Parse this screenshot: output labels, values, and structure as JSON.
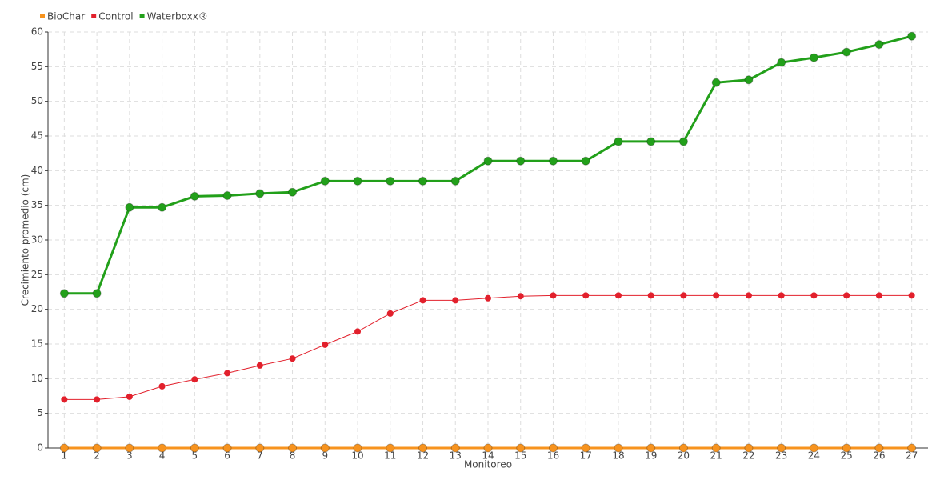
{
  "chart_data": {
    "type": "line",
    "x_label": "Monitoreo",
    "y_label": "Crecimiento promedio (cm)",
    "categories": [
      "1",
      "2",
      "3",
      "4",
      "5",
      "6",
      "7",
      "8",
      "9",
      "10",
      "11",
      "12",
      "13",
      "14",
      "15",
      "16",
      "17",
      "18",
      "19",
      "20",
      "21",
      "22",
      "23",
      "24",
      "25",
      "26",
      "27"
    ],
    "series": [
      {
        "name": "BioChar",
        "color": "#f7931e",
        "values": [
          0,
          0,
          0,
          0,
          0,
          0,
          0,
          0,
          0,
          0,
          0,
          0,
          0,
          0,
          0,
          0,
          0,
          0,
          0,
          0,
          0,
          0,
          0,
          0,
          0,
          0,
          0
        ]
      },
      {
        "name": "Control",
        "color": "#e2202c",
        "values": [
          7.0,
          7.0,
          7.4,
          8.9,
          9.9,
          10.8,
          11.9,
          12.9,
          14.9,
          16.8,
          19.4,
          21.3,
          21.3,
          21.6,
          21.9,
          22.0,
          22.0,
          22.0,
          22.0,
          22.0,
          22.0,
          22.0,
          22.0,
          22.0,
          22.0,
          22.0,
          22.0
        ]
      },
      {
        "name": "Waterboxx®",
        "color": "#22a01a",
        "values": [
          22.3,
          22.3,
          34.7,
          34.7,
          36.3,
          36.4,
          36.7,
          36.9,
          38.5,
          38.5,
          38.5,
          38.5,
          38.5,
          41.4,
          41.4,
          41.4,
          41.4,
          44.2,
          44.2,
          44.2,
          52.7,
          53.1,
          55.6,
          56.3,
          57.1,
          58.2,
          59.4
        ]
      }
    ],
    "ylim": [
      0,
      60
    ],
    "yticks": [
      0,
      5,
      10,
      15,
      20,
      25,
      30,
      35,
      40,
      45,
      50,
      55,
      60
    ],
    "grid": true,
    "legend": "top-left"
  }
}
